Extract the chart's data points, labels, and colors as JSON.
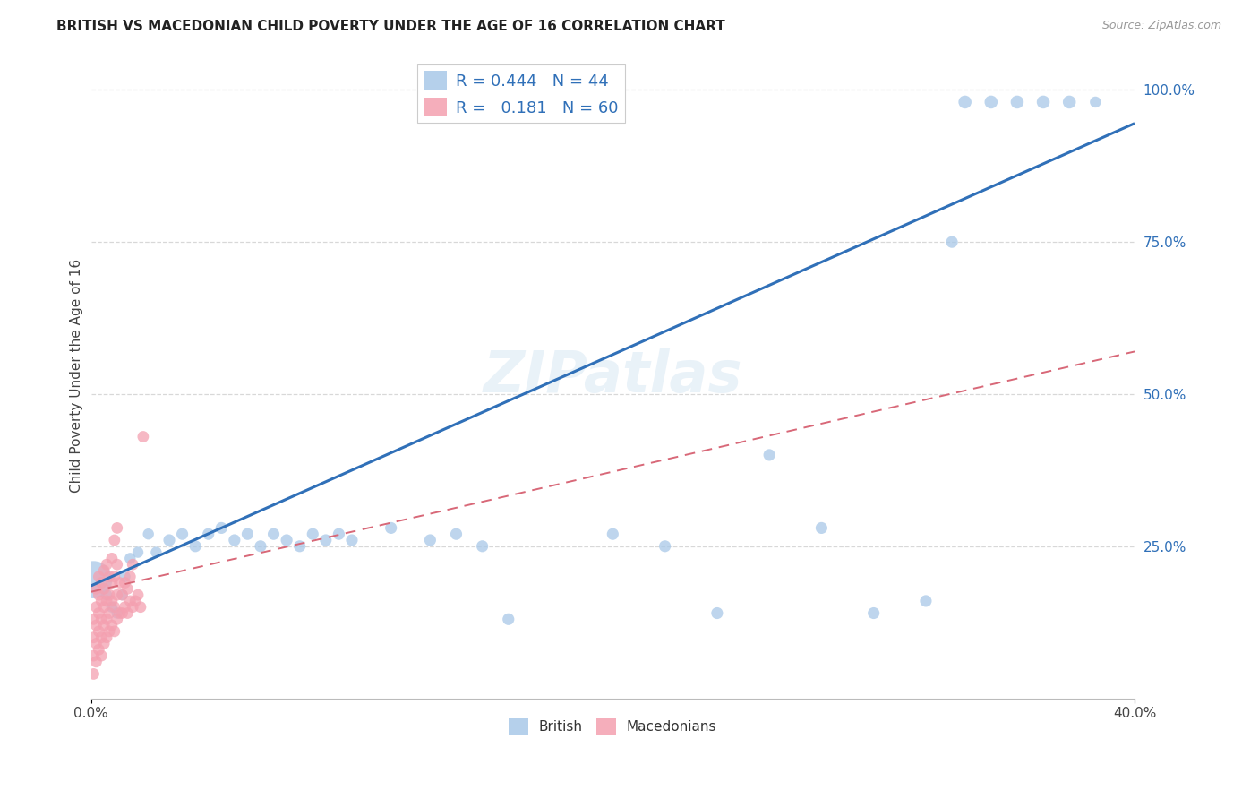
{
  "title": "BRITISH VS MACEDONIAN CHILD POVERTY UNDER THE AGE OF 16 CORRELATION CHART",
  "source": "Source: ZipAtlas.com",
  "ylabel": "Child Poverty Under the Age of 16",
  "xlim": [
    0.0,
    0.4
  ],
  "ylim": [
    0.0,
    1.06
  ],
  "british_R": 0.444,
  "british_N": 44,
  "macedonian_R": 0.181,
  "macedonian_N": 60,
  "british_color": "#a8c8e8",
  "macedonian_color": "#f4a0b0",
  "british_line_color": "#3070b8",
  "macedonian_line_color": "#d86878",
  "watermark": "ZIPatlas",
  "brit_trend_x": [
    0.0,
    0.4
  ],
  "brit_trend_y": [
    0.185,
    0.945
  ],
  "mac_trend_x": [
    0.0,
    0.4
  ],
  "mac_trend_y": [
    0.175,
    0.57
  ],
  "british_points": [
    [
      0.001,
      0.195,
      900
    ],
    [
      0.006,
      0.17,
      80
    ],
    [
      0.008,
      0.15,
      80
    ],
    [
      0.01,
      0.14,
      80
    ],
    [
      0.012,
      0.17,
      80
    ],
    [
      0.013,
      0.2,
      80
    ],
    [
      0.015,
      0.23,
      80
    ],
    [
      0.018,
      0.24,
      80
    ],
    [
      0.022,
      0.27,
      80
    ],
    [
      0.025,
      0.24,
      80
    ],
    [
      0.03,
      0.26,
      90
    ],
    [
      0.035,
      0.27,
      90
    ],
    [
      0.04,
      0.25,
      90
    ],
    [
      0.045,
      0.27,
      90
    ],
    [
      0.05,
      0.28,
      90
    ],
    [
      0.055,
      0.26,
      90
    ],
    [
      0.06,
      0.27,
      90
    ],
    [
      0.065,
      0.25,
      90
    ],
    [
      0.07,
      0.27,
      90
    ],
    [
      0.075,
      0.26,
      90
    ],
    [
      0.08,
      0.25,
      90
    ],
    [
      0.085,
      0.27,
      90
    ],
    [
      0.09,
      0.26,
      90
    ],
    [
      0.095,
      0.27,
      90
    ],
    [
      0.1,
      0.26,
      90
    ],
    [
      0.115,
      0.28,
      90
    ],
    [
      0.13,
      0.26,
      90
    ],
    [
      0.14,
      0.27,
      90
    ],
    [
      0.15,
      0.25,
      90
    ],
    [
      0.16,
      0.13,
      90
    ],
    [
      0.2,
      0.27,
      90
    ],
    [
      0.22,
      0.25,
      90
    ],
    [
      0.24,
      0.14,
      90
    ],
    [
      0.26,
      0.4,
      90
    ],
    [
      0.28,
      0.28,
      90
    ],
    [
      0.3,
      0.14,
      90
    ],
    [
      0.32,
      0.16,
      90
    ],
    [
      0.33,
      0.75,
      90
    ],
    [
      0.335,
      0.98,
      110
    ],
    [
      0.345,
      0.98,
      110
    ],
    [
      0.355,
      0.98,
      110
    ],
    [
      0.365,
      0.98,
      110
    ],
    [
      0.375,
      0.98,
      110
    ],
    [
      0.385,
      0.98,
      80
    ]
  ],
  "macedonian_points": [
    [
      0.001,
      0.04
    ],
    [
      0.001,
      0.07
    ],
    [
      0.001,
      0.1
    ],
    [
      0.001,
      0.13
    ],
    [
      0.002,
      0.06
    ],
    [
      0.002,
      0.09
    ],
    [
      0.002,
      0.12
    ],
    [
      0.002,
      0.15
    ],
    [
      0.002,
      0.18
    ],
    [
      0.003,
      0.08
    ],
    [
      0.003,
      0.11
    ],
    [
      0.003,
      0.14
    ],
    [
      0.003,
      0.17
    ],
    [
      0.003,
      0.2
    ],
    [
      0.004,
      0.07
    ],
    [
      0.004,
      0.1
    ],
    [
      0.004,
      0.13
    ],
    [
      0.004,
      0.16
    ],
    [
      0.004,
      0.19
    ],
    [
      0.005,
      0.09
    ],
    [
      0.005,
      0.12
    ],
    [
      0.005,
      0.15
    ],
    [
      0.005,
      0.18
    ],
    [
      0.005,
      0.21
    ],
    [
      0.006,
      0.1
    ],
    [
      0.006,
      0.13
    ],
    [
      0.006,
      0.16
    ],
    [
      0.006,
      0.22
    ],
    [
      0.007,
      0.11
    ],
    [
      0.007,
      0.14
    ],
    [
      0.007,
      0.17
    ],
    [
      0.007,
      0.2
    ],
    [
      0.008,
      0.12
    ],
    [
      0.008,
      0.16
    ],
    [
      0.008,
      0.19
    ],
    [
      0.008,
      0.23
    ],
    [
      0.009,
      0.11
    ],
    [
      0.009,
      0.15
    ],
    [
      0.009,
      0.2
    ],
    [
      0.009,
      0.26
    ],
    [
      0.01,
      0.13
    ],
    [
      0.01,
      0.17
    ],
    [
      0.01,
      0.22
    ],
    [
      0.01,
      0.28
    ],
    [
      0.011,
      0.14
    ],
    [
      0.011,
      0.19
    ],
    [
      0.012,
      0.14
    ],
    [
      0.012,
      0.17
    ],
    [
      0.013,
      0.15
    ],
    [
      0.013,
      0.19
    ],
    [
      0.014,
      0.14
    ],
    [
      0.014,
      0.18
    ],
    [
      0.015,
      0.16
    ],
    [
      0.015,
      0.2
    ],
    [
      0.016,
      0.15
    ],
    [
      0.016,
      0.22
    ],
    [
      0.017,
      0.16
    ],
    [
      0.018,
      0.17
    ],
    [
      0.019,
      0.15
    ],
    [
      0.02,
      0.43
    ]
  ],
  "grid_color": "#d8d8d8",
  "background_color": "#ffffff"
}
